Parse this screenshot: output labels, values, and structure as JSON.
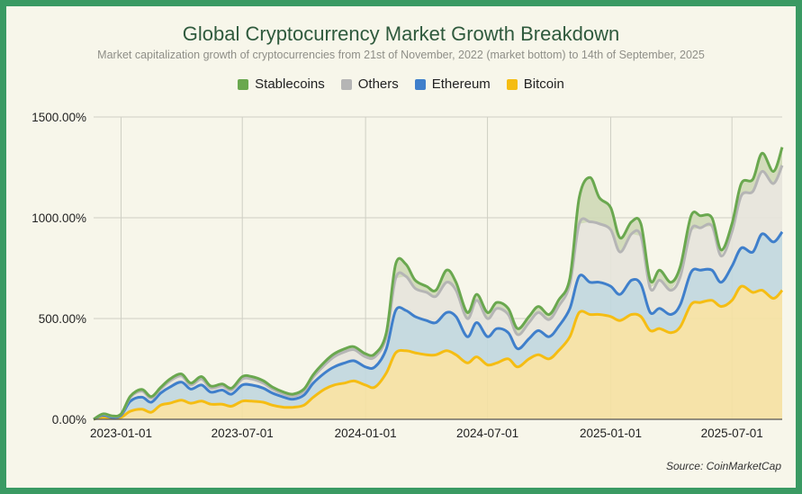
{
  "chart_data": {
    "type": "area",
    "title": "Global Cryptocurrency Market Growth Breakdown",
    "subtitle": "Market capitalization growth of cryptocurrencies from 21st of November, 2022 (market bottom) to 14th of September, 2025",
    "source": "Source: CoinMarketCap",
    "x_range": [
      "2022-11-21",
      "2025-09-14"
    ],
    "ylim": [
      0,
      1500
    ],
    "y_ticks": [
      0,
      500,
      1000,
      1500
    ],
    "y_tick_labels": [
      "0.00%",
      "500.00%",
      "1000.00%",
      "1500.00%"
    ],
    "x_ticks": [
      "2023-01-01",
      "2023-07-01",
      "2024-01-01",
      "2024-07-01",
      "2025-01-01",
      "2025-07-01"
    ],
    "grid": true,
    "legend_position": "top",
    "stacked": true,
    "x": [
      "2022-11-21",
      "2022-12-05",
      "2022-12-19",
      "2023-01-01",
      "2023-01-15",
      "2023-02-01",
      "2023-02-15",
      "2023-03-01",
      "2023-03-15",
      "2023-04-01",
      "2023-04-15",
      "2023-05-01",
      "2023-05-15",
      "2023-06-01",
      "2023-06-15",
      "2023-07-01",
      "2023-07-15",
      "2023-08-01",
      "2023-08-15",
      "2023-09-01",
      "2023-09-15",
      "2023-10-01",
      "2023-10-15",
      "2023-11-01",
      "2023-11-15",
      "2023-12-01",
      "2023-12-15",
      "2024-01-01",
      "2024-01-15",
      "2024-02-01",
      "2024-02-15",
      "2024-03-01",
      "2024-03-15",
      "2024-04-01",
      "2024-04-15",
      "2024-05-01",
      "2024-05-15",
      "2024-06-01",
      "2024-06-15",
      "2024-07-01",
      "2024-07-15",
      "2024-08-01",
      "2024-08-15",
      "2024-09-01",
      "2024-09-15",
      "2024-10-01",
      "2024-10-15",
      "2024-11-01",
      "2024-11-15",
      "2024-12-01",
      "2024-12-15",
      "2025-01-01",
      "2025-01-15",
      "2025-02-01",
      "2025-02-15",
      "2025-03-01",
      "2025-03-15",
      "2025-04-01",
      "2025-04-15",
      "2025-05-01",
      "2025-05-15",
      "2025-06-01",
      "2025-06-15",
      "2025-07-01",
      "2025-07-15",
      "2025-08-01",
      "2025-08-15",
      "2025-09-01",
      "2025-09-14"
    ],
    "series": [
      {
        "name": "Bitcoin",
        "color": "#f5bd13",
        "fill": "#f5e1a2",
        "values": [
          0,
          10,
          5,
          10,
          40,
          50,
          35,
          70,
          80,
          95,
          80,
          90,
          75,
          75,
          65,
          90,
          90,
          85,
          70,
          60,
          60,
          70,
          110,
          150,
          170,
          180,
          190,
          170,
          160,
          230,
          330,
          340,
          330,
          320,
          320,
          340,
          320,
          280,
          310,
          270,
          280,
          300,
          260,
          300,
          320,
          300,
          340,
          410,
          530,
          520,
          520,
          510,
          490,
          520,
          510,
          440,
          450,
          430,
          460,
          570,
          580,
          590,
          560,
          590,
          660,
          630,
          640,
          600,
          640
        ]
      },
      {
        "name": "Ethereum",
        "color": "#3f7fcb",
        "fill": "#c0d7df",
        "values": [
          0,
          10,
          5,
          10,
          50,
          60,
          50,
          60,
          80,
          90,
          70,
          80,
          60,
          70,
          60,
          80,
          80,
          70,
          60,
          50,
          40,
          50,
          70,
          80,
          90,
          100,
          100,
          90,
          100,
          120,
          210,
          200,
          180,
          170,
          160,
          190,
          190,
          130,
          170,
          140,
          170,
          130,
          90,
          100,
          120,
          110,
          120,
          140,
          180,
          160,
          160,
          150,
          130,
          170,
          160,
          90,
          100,
          90,
          110,
          160,
          160,
          150,
          120,
          170,
          190,
          200,
          280,
          280,
          290
        ]
      },
      {
        "name": "Others",
        "color": "#b5b5b5",
        "fill": "#e6e4dc",
        "values": [
          0,
          5,
          5,
          5,
          20,
          30,
          20,
          20,
          30,
          30,
          20,
          30,
          20,
          20,
          20,
          30,
          30,
          25,
          20,
          15,
          15,
          20,
          30,
          40,
          50,
          55,
          55,
          50,
          50,
          60,
          160,
          170,
          140,
          140,
          130,
          150,
          130,
          90,
          110,
          90,
          100,
          90,
          70,
          80,
          90,
          85,
          100,
          120,
          260,
          300,
          290,
          280,
          210,
          230,
          240,
          120,
          140,
          120,
          140,
          210,
          210,
          220,
          130,
          170,
          260,
          300,
          310,
          290,
          330
        ]
      },
      {
        "name": "Stablecoins",
        "color": "#6aa84f",
        "fill": "#ced9b6",
        "values": [
          0,
          2,
          2,
          2,
          5,
          8,
          8,
          8,
          10,
          10,
          10,
          12,
          10,
          10,
          10,
          12,
          12,
          12,
          10,
          10,
          10,
          10,
          12,
          15,
          15,
          15,
          15,
          15,
          15,
          20,
          70,
          60,
          40,
          30,
          30,
          60,
          40,
          30,
          30,
          30,
          30,
          30,
          30,
          30,
          30,
          25,
          30,
          30,
          130,
          220,
          130,
          110,
          70,
          60,
          60,
          40,
          50,
          40,
          50,
          70,
          60,
          40,
          30,
          40,
          60,
          60,
          90,
          60,
          90
        ]
      }
    ]
  }
}
